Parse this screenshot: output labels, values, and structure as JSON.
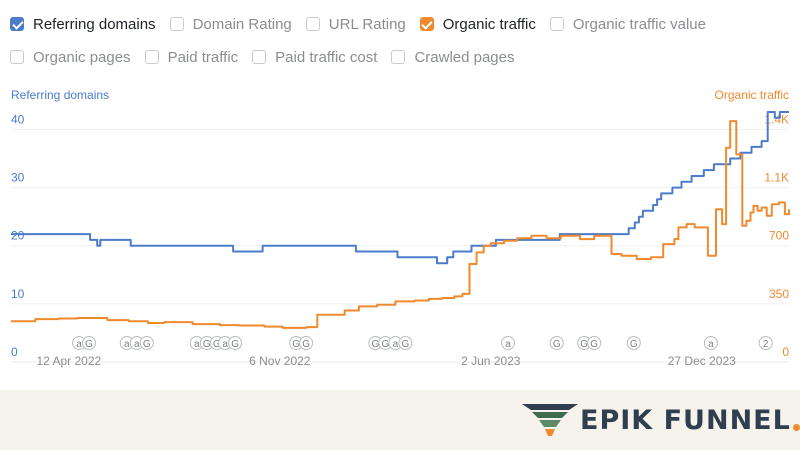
{
  "filters": [
    {
      "label": "Referring domains",
      "checked": true,
      "color": "#4a7cc9"
    },
    {
      "label": "Domain Rating",
      "checked": false
    },
    {
      "label": "URL Rating",
      "checked": false
    },
    {
      "label": "Organic traffic",
      "checked": true,
      "color": "#f08a2e"
    },
    {
      "label": "Organic traffic value",
      "checked": false
    },
    {
      "label": "Organic pages",
      "checked": false
    },
    {
      "label": "Paid traffic",
      "checked": false
    },
    {
      "label": "Paid traffic cost",
      "checked": false
    },
    {
      "label": "Crawled pages",
      "checked": false
    }
  ],
  "logo": {
    "text": "EPIK FUNNEL",
    "dot_color": "#f08a2e"
  },
  "chart_data": {
    "type": "line",
    "x_type": "date",
    "x_ticks": [
      "12 Apr 2022",
      "6 Nov 2022",
      "2 Jun 2023",
      "27 Dec 2023"
    ],
    "xlim": [
      "2022-02-14",
      "2024-03-22"
    ],
    "axes": {
      "left": {
        "label": "Referring domains",
        "ticks": [
          0,
          10,
          20,
          30,
          40
        ],
        "ticks_text": [
          "0",
          "10",
          "20",
          "30",
          "40"
        ],
        "ylim": [
          0,
          43
        ],
        "color": "#4a7cc9"
      },
      "right": {
        "label": "Organic traffic",
        "ticks": [
          0,
          350,
          700,
          1050,
          1400
        ],
        "ticks_text": [
          "0",
          "350",
          "700",
          "1.1K",
          "1.4K"
        ],
        "ylim": [
          0,
          1505
        ],
        "color": "#f08a2e"
      }
    },
    "grid": true,
    "series": [
      {
        "name": "Referring domains",
        "axis": "left",
        "color": "#4a7cc9",
        "x": [
          "2022-02-14",
          "2022-04-24",
          "2022-05-03",
          "2022-05-10",
          "2022-05-13",
          "2022-06-08",
          "2022-06-12",
          "2022-06-20",
          "2022-09-15",
          "2022-09-21",
          "2022-10-20",
          "2022-11-27",
          "2022-12-27",
          "2023-01-20",
          "2023-02-15",
          "2023-03-02",
          "2023-03-20",
          "2023-04-10",
          "2023-04-20",
          "2023-04-26",
          "2023-05-14",
          "2023-06-07",
          "2023-07-01",
          "2023-07-15",
          "2023-07-29",
          "2023-08-09",
          "2023-08-20",
          "2023-08-30",
          "2023-09-20",
          "2023-10-05",
          "2023-10-16",
          "2023-10-22",
          "2023-10-26",
          "2023-10-30",
          "2023-11-03",
          "2023-11-09",
          "2023-11-13",
          "2023-11-17",
          "2023-11-22",
          "2023-11-28",
          "2023-12-03",
          "2023-12-07",
          "2023-12-12",
          "2023-12-17",
          "2023-12-23",
          "2023-12-29",
          "2024-01-04",
          "2024-01-08",
          "2024-01-14",
          "2024-01-18",
          "2024-01-24",
          "2024-01-29",
          "2024-02-03",
          "2024-02-08",
          "2024-02-14",
          "2024-02-18",
          "2024-02-24",
          "2024-03-01",
          "2024-03-08",
          "2024-03-13",
          "2024-03-22"
        ],
        "values": [
          22,
          22,
          21,
          20,
          21,
          21,
          20,
          20,
          20,
          19,
          20,
          20,
          20,
          19,
          19,
          18,
          18,
          17,
          18,
          19,
          20,
          21,
          21,
          21,
          21,
          22,
          22,
          22,
          22,
          22,
          23,
          24,
          25,
          26,
          26,
          27,
          28,
          29,
          29,
          30,
          30,
          31,
          31,
          32,
          32,
          33,
          33,
          34,
          34,
          34,
          35,
          35,
          36,
          36,
          37,
          37,
          38,
          43,
          42,
          43,
          43
        ]
      },
      {
        "name": "Organic traffic",
        "axis": "right",
        "color": "#f08a2e",
        "x": [
          "2022-02-14",
          "2022-03-10",
          "2022-04-02",
          "2022-04-20",
          "2022-05-20",
          "2022-06-10",
          "2022-06-29",
          "2022-07-15",
          "2022-08-12",
          "2022-09-08",
          "2022-09-27",
          "2022-10-22",
          "2022-11-09",
          "2022-12-02",
          "2022-12-13",
          "2022-12-31",
          "2023-01-09",
          "2023-01-23",
          "2023-02-10",
          "2023-02-28",
          "2023-03-19",
          "2023-04-02",
          "2023-04-15",
          "2023-04-27",
          "2023-05-05",
          "2023-05-12",
          "2023-05-19",
          "2023-05-26",
          "2023-06-02",
          "2023-06-15",
          "2023-06-28",
          "2023-07-12",
          "2023-07-27",
          "2023-08-10",
          "2023-08-29",
          "2023-09-12",
          "2023-09-29",
          "2023-10-09",
          "2023-10-24",
          "2023-11-07",
          "2023-11-19",
          "2023-11-30",
          "2023-12-04",
          "2023-12-12",
          "2023-12-20",
          "2024-01-02",
          "2024-01-10",
          "2024-01-16",
          "2024-01-20",
          "2024-01-24",
          "2024-01-30",
          "2024-02-05",
          "2024-02-09",
          "2024-02-13",
          "2024-02-16",
          "2024-02-20",
          "2024-02-24",
          "2024-02-29",
          "2024-03-05",
          "2024-03-12",
          "2024-03-18",
          "2024-03-22"
        ],
        "values": [
          245,
          258,
          262,
          265,
          252,
          245,
          235,
          240,
          228,
          222,
          220,
          213,
          205,
          210,
          285,
          285,
          310,
          335,
          345,
          365,
          370,
          380,
          385,
          395,
          410,
          590,
          660,
          700,
          715,
          730,
          745,
          760,
          745,
          760,
          740,
          760,
          650,
          640,
          620,
          630,
          710,
          740,
          810,
          830,
          810,
          640,
          920,
          830,
          1290,
          1450,
          1250,
          820,
          850,
          900,
          940,
          910,
          930,
          880,
          950,
          960,
          890,
          920
        ]
      }
    ],
    "annotations": [
      {
        "x": "2022-04-27",
        "labels": [
          "a",
          "G"
        ]
      },
      {
        "x": "2022-06-18",
        "labels": [
          "a",
          "a",
          "G"
        ]
      },
      {
        "x": "2022-08-26",
        "labels": [
          "a",
          "G",
          "G"
        ]
      },
      {
        "x": "2022-09-18",
        "labels": [
          "a",
          "G"
        ]
      },
      {
        "x": "2022-11-27",
        "labels": [
          "G",
          "G"
        ]
      },
      {
        "x": "2023-02-23",
        "labels": [
          "G",
          "G",
          "a",
          "G"
        ]
      },
      {
        "x": "2023-06-19",
        "labels": [
          "a"
        ]
      },
      {
        "x": "2023-08-06",
        "labels": [
          "G"
        ]
      },
      {
        "x": "2023-09-07",
        "labels": [
          "G",
          "G"
        ]
      },
      {
        "x": "2023-10-21",
        "labels": [
          "G"
        ]
      },
      {
        "x": "2024-01-05",
        "labels": [
          "a"
        ]
      },
      {
        "x": "2024-02-28",
        "labels": [
          "2"
        ]
      }
    ]
  }
}
